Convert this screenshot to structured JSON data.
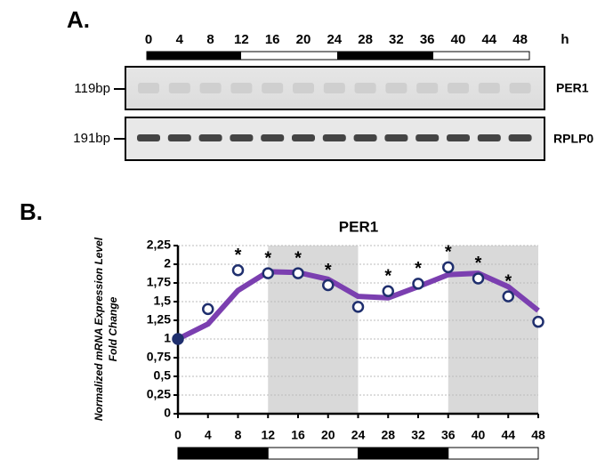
{
  "panel_a": {
    "label": "A.",
    "time_labels": [
      "0",
      "4",
      "8",
      "12",
      "16",
      "20",
      "24",
      "28",
      "32",
      "36",
      "40",
      "44",
      "48"
    ],
    "unit": "h",
    "gels": [
      {
        "size": "119bp",
        "gene": "PER1"
      },
      {
        "size": "191bp",
        "gene": "RPLP0"
      }
    ]
  },
  "chart_data": {
    "type": "line",
    "panel_label": "B.",
    "title": "PER1",
    "ylabel": [
      "Normalized mRNA Expression Level",
      "Fold Change"
    ],
    "x": [
      0,
      4,
      8,
      12,
      16,
      20,
      24,
      28,
      32,
      36,
      40,
      44,
      48
    ],
    "xlim": [
      0,
      48
    ],
    "xticks": [
      0,
      4,
      8,
      12,
      16,
      20,
      24,
      28,
      32,
      36,
      40,
      44,
      48
    ],
    "ylim": [
      0,
      2.25
    ],
    "yticks": [
      {
        "value": 0,
        "label": "0"
      },
      {
        "value": 0.25,
        "label": "0,25"
      },
      {
        "value": 0.5,
        "label": "0,5"
      },
      {
        "value": 0.75,
        "label": "0,75"
      },
      {
        "value": 1,
        "label": "1"
      },
      {
        "value": 1.25,
        "label": "1,25"
      },
      {
        "value": 1.5,
        "label": "1,5"
      },
      {
        "value": 1.75,
        "label": "1,75"
      },
      {
        "value": 2,
        "label": "2"
      },
      {
        "value": 2.25,
        "label": "2,25"
      }
    ],
    "grid": true,
    "shaded": [
      [
        12,
        24
      ],
      [
        36,
        48
      ]
    ],
    "series": [
      {
        "style": "line",
        "color": "#7b3fb0",
        "values": [
          1.0,
          1.2,
          1.65,
          1.9,
          1.89,
          1.8,
          1.57,
          1.55,
          1.7,
          1.86,
          1.88,
          1.7,
          1.38
        ]
      },
      {
        "style": "markers",
        "color": "#1f2f6e",
        "values": [
          1.0,
          1.4,
          1.92,
          1.88,
          1.88,
          1.72,
          1.43,
          1.64,
          1.74,
          1.96,
          1.81,
          1.57,
          1.23
        ]
      }
    ],
    "annotations": [
      {
        "x": 8,
        "text": "*"
      },
      {
        "x": 12,
        "text": "*"
      },
      {
        "x": 16,
        "text": "*"
      },
      {
        "x": 20,
        "text": "*"
      },
      {
        "x": 28,
        "text": "*"
      },
      {
        "x": 32,
        "text": "*"
      },
      {
        "x": 36,
        "text": "*"
      },
      {
        "x": 40,
        "text": "*"
      },
      {
        "x": 44,
        "text": "*"
      }
    ]
  }
}
